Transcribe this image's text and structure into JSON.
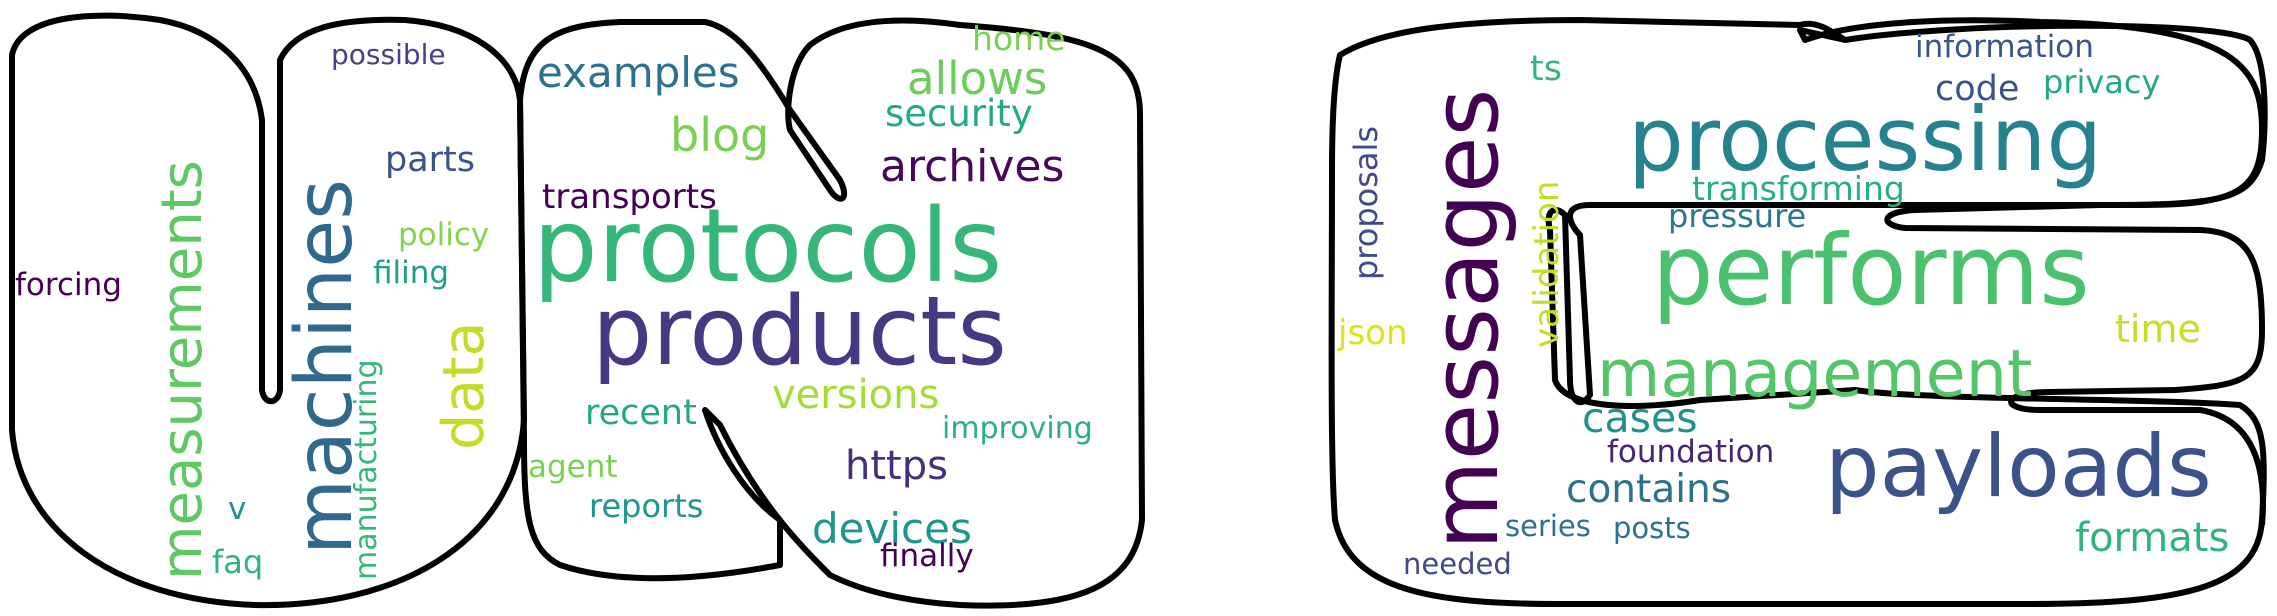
{
  "words": [
    {
      "text": "protocols",
      "color": "#35b779"
    },
    {
      "text": "products",
      "color": "#443983"
    },
    {
      "text": "machines",
      "color": "#31688e"
    },
    {
      "text": "measurements",
      "color": "#5ec962"
    },
    {
      "text": "examples",
      "color": "#2c728e"
    },
    {
      "text": "allows",
      "color": "#6ccd5a"
    },
    {
      "text": "archives",
      "color": "#46085c"
    },
    {
      "text": "security",
      "color": "#23a983"
    },
    {
      "text": "home",
      "color": "#7ad151"
    },
    {
      "text": "blog",
      "color": "#7ad151"
    },
    {
      "text": "transports",
      "color": "#440154"
    },
    {
      "text": "possible",
      "color": "#414487"
    },
    {
      "text": "parts",
      "color": "#3b528b"
    },
    {
      "text": "policy",
      "color": "#84d44b"
    },
    {
      "text": "filing",
      "color": "#1f9e89"
    },
    {
      "text": "forcing",
      "color": "#440154"
    },
    {
      "text": "data",
      "color": "#bddf26"
    },
    {
      "text": "manufacturing",
      "color": "#35b779"
    },
    {
      "text": "v",
      "color": "#21918c"
    },
    {
      "text": "faq",
      "color": "#2fb47c"
    },
    {
      "text": "versions",
      "color": "#a5db36"
    },
    {
      "text": "recent",
      "color": "#22a884"
    },
    {
      "text": "improving",
      "color": "#2ab07f"
    },
    {
      "text": "agent",
      "color": "#7ad151"
    },
    {
      "text": "https",
      "color": "#472f7d"
    },
    {
      "text": "reports",
      "color": "#1f968b"
    },
    {
      "text": "devices",
      "color": "#1f968b"
    },
    {
      "text": "finally",
      "color": "#440154"
    },
    {
      "text": "messages",
      "color": "#440154"
    },
    {
      "text": "processing",
      "color": "#26828e"
    },
    {
      "text": "performs",
      "color": "#4ac16d"
    },
    {
      "text": "payloads",
      "color": "#3b528b"
    },
    {
      "text": "management",
      "color": "#54c568"
    },
    {
      "text": "information",
      "color": "#39568c"
    },
    {
      "text": "privacy",
      "color": "#22a884"
    },
    {
      "text": "code",
      "color": "#3b528b"
    },
    {
      "text": "ts",
      "color": "#35b779"
    },
    {
      "text": "proposals",
      "color": "#3e4a89"
    },
    {
      "text": "transforming",
      "color": "#28ae80"
    },
    {
      "text": "pressure",
      "color": "#2a788e"
    },
    {
      "text": "validation",
      "color": "#bddf26"
    },
    {
      "text": "json",
      "color": "#dde318"
    },
    {
      "text": "time",
      "color": "#c2df23"
    },
    {
      "text": "cases",
      "color": "#21918c"
    },
    {
      "text": "foundation",
      "color": "#482475"
    },
    {
      "text": "contains",
      "color": "#2c728e"
    },
    {
      "text": "formats",
      "color": "#2fb47c"
    },
    {
      "text": "series",
      "color": "#2c728e"
    },
    {
      "text": "posts",
      "color": "#2c728e"
    },
    {
      "text": "needed",
      "color": "#3e4a89"
    }
  ]
}
